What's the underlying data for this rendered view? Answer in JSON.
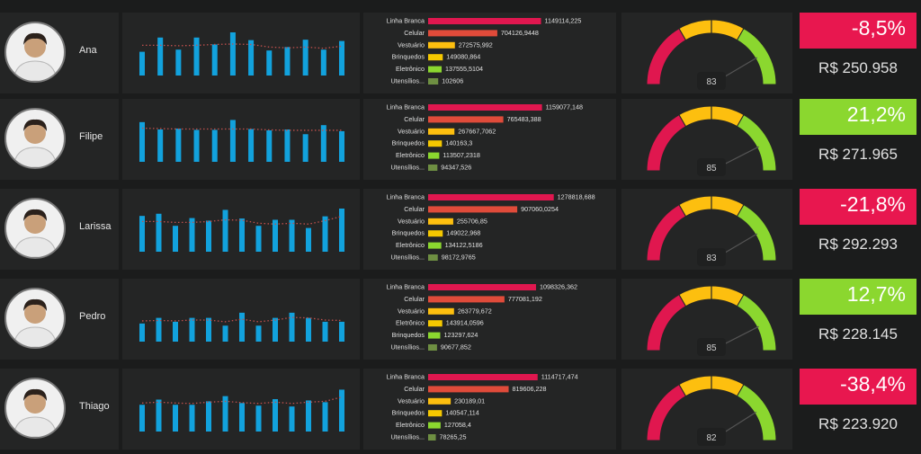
{
  "colors": {
    "background": "#1b1c1c",
    "panel": "#242525",
    "bar_blue": "#12a2dd",
    "trend_dot": "#c0504d",
    "negative": "#e8174f",
    "positive": "#8bd72f",
    "gauge_red": "#e0174f",
    "gauge_yellow": "#fdbf0f",
    "gauge_green": "#8bd72f",
    "cat_bar_colors": [
      "#e0174f",
      "#e04b3a",
      "#fdbf0f",
      "#f5c800",
      "#8bd72f",
      "#6e8f42"
    ]
  },
  "chart_data": [
    {
      "type": "bar",
      "person": "Ana",
      "monthly_values": [
        0.55,
        0.88,
        0.6,
        0.88,
        0.72,
        1.0,
        0.82,
        0.58,
        0.66,
        0.83,
        0.6,
        0.8
      ],
      "trend_values": [
        0.7,
        0.7,
        0.69,
        0.7,
        0.72,
        0.73,
        0.72,
        0.66,
        0.64,
        0.66,
        0.63,
        0.68
      ],
      "categories": [
        "Linha Branca",
        "Celular",
        "Vestuário",
        "Brinquedos",
        "Eletrônico",
        "Utensílios..."
      ],
      "values": [
        1149114.225,
        704126.9448,
        272575.992,
        149080.864,
        137555.5104,
        102606
      ],
      "value_labels": [
        "1149114,225",
        "704126,9448",
        "272575,992",
        "149080,864",
        "137555,5104",
        "102606"
      ],
      "gauge_value": 83,
      "gauge_label": "83",
      "kpi_pct": "-8,5%",
      "kpi_positive": false,
      "kpi_value": "R$ 250.958"
    },
    {
      "type": "bar",
      "person": "Filipe",
      "monthly_values": [
        0.92,
        0.75,
        0.77,
        0.74,
        0.74,
        0.97,
        0.76,
        0.73,
        0.75,
        0.64,
        0.85,
        0.71
      ],
      "trend_values": [
        0.78,
        0.77,
        0.76,
        0.76,
        0.76,
        0.76,
        0.76,
        0.74,
        0.73,
        0.73,
        0.73,
        0.73
      ],
      "categories": [
        "Linha Branca",
        "Celular",
        "Vestuário",
        "Brinquedos",
        "Eletrônico",
        "Utensílios..."
      ],
      "values": [
        1159077.148,
        765483.388,
        267667.7062,
        140163.3,
        113507.2318,
        94347.526
      ],
      "value_labels": [
        "1159077,148",
        "765483,388",
        "267667,7062",
        "140163,3",
        "113507,2318",
        "94347,526"
      ],
      "gauge_value": 85,
      "gauge_label": "85",
      "kpi_pct": "21,2%",
      "kpi_positive": true,
      "kpi_value": "R$ 271.965"
    },
    {
      "type": "bar",
      "person": "Larissa",
      "monthly_values": [
        0.83,
        0.88,
        0.6,
        0.78,
        0.72,
        0.97,
        0.77,
        0.6,
        0.74,
        0.74,
        0.55,
        0.82,
        1.0
      ],
      "trend_values": [
        0.7,
        0.7,
        0.68,
        0.68,
        0.7,
        0.74,
        0.73,
        0.66,
        0.64,
        0.66,
        0.64,
        0.72,
        0.82
      ],
      "categories": [
        "Linha Branca",
        "Celular",
        "Vestuário",
        "Brinquedos",
        "Eletrônico",
        "Utensílios..."
      ],
      "values": [
        1278818.688,
        907060.0254,
        255706.85,
        149022.968,
        134122.5186,
        98172.9765
      ],
      "value_labels": [
        "1278818,688",
        "907060,0254",
        "255706,85",
        "149022,968",
        "134122,5186",
        "98172,9765"
      ],
      "gauge_value": 83,
      "gauge_label": "83",
      "kpi_pct": "-21,8%",
      "kpi_positive": false,
      "kpi_value": "R$ 292.293"
    },
    {
      "type": "bar",
      "person": "Pedro",
      "monthly_values": [
        0.42,
        0.55,
        0.46,
        0.55,
        0.55,
        0.37,
        0.67,
        0.37,
        0.55,
        0.67,
        0.55,
        0.46,
        0.46
      ],
      "trend_values": [
        0.48,
        0.49,
        0.48,
        0.5,
        0.5,
        0.46,
        0.52,
        0.46,
        0.5,
        0.56,
        0.55,
        0.5,
        0.49
      ],
      "categories": [
        "Linha Branca",
        "Celular",
        "Vestuário",
        "Eletrônico",
        "Brinquedos",
        "Utensílios..."
      ],
      "values": [
        1098326.362,
        777081.192,
        263779.672,
        143914.0596,
        123297.624,
        90677.852
      ],
      "value_labels": [
        "1098326,362",
        "777081,192",
        "263779,672",
        "143914,0596",
        "123297,624",
        "90677,852"
      ],
      "gauge_value": 85,
      "gauge_label": "85",
      "kpi_pct": "12,7%",
      "kpi_positive": true,
      "kpi_value": "R$ 228.145"
    },
    {
      "type": "bar",
      "person": "Thiago",
      "monthly_values": [
        0.62,
        0.74,
        0.62,
        0.62,
        0.7,
        0.82,
        0.66,
        0.6,
        0.75,
        0.58,
        0.72,
        0.68,
        0.97
      ],
      "trend_values": [
        0.66,
        0.68,
        0.66,
        0.65,
        0.68,
        0.7,
        0.67,
        0.65,
        0.68,
        0.65,
        0.68,
        0.7,
        0.8
      ],
      "categories": [
        "Linha Branca",
        "Celular",
        "Vestuário",
        "Brinquedos",
        "Eletrônico",
        "Utensílios..."
      ],
      "values": [
        1114717.474,
        819606.228,
        230189.01,
        140547.114,
        127058.4,
        78265.25
      ],
      "value_labels": [
        "1114717,474",
        "819606,228",
        "230189,01",
        "140547,114",
        "127058,4",
        "78265,25"
      ],
      "gauge_value": 82,
      "gauge_label": "82",
      "kpi_pct": "-38,4%",
      "kpi_positive": false,
      "kpi_value": "R$ 223.920"
    }
  ]
}
